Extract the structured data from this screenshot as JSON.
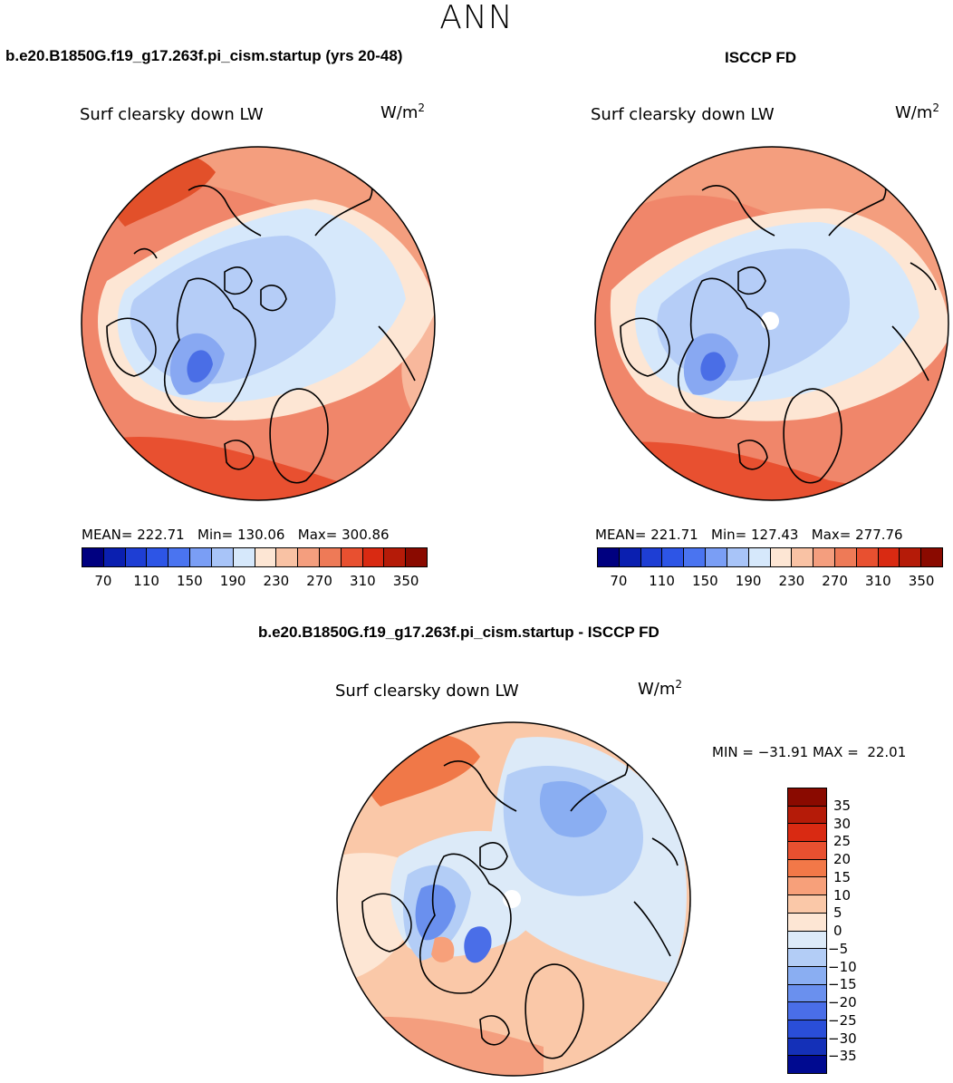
{
  "page": {
    "title": "ANN"
  },
  "panels": {
    "left": {
      "case_title": "b.e20.B1850G.f19_g17.263f.pi_cism.startup (yrs 20-48)",
      "variable": "Surf clearsky down LW",
      "units_base": "W/m",
      "units_exp": "2",
      "stats": "MEAN= 222.71   Min= 130.06   Max= 300.86",
      "colorbar": {
        "colors": [
          "#000080",
          "#0a1fb0",
          "#1e3ed4",
          "#2d55e6",
          "#4a74f0",
          "#7a9ef5",
          "#a8c4f8",
          "#d6e8fb",
          "#fde6d4",
          "#f9c2a4",
          "#f49e7e",
          "#ee7a57",
          "#e85030",
          "#d92a12",
          "#b51b08",
          "#8a0a00"
        ],
        "tick_labels": [
          "70",
          "110",
          "150",
          "190",
          "230",
          "270",
          "310",
          "350"
        ]
      }
    },
    "right": {
      "case_title": "ISCCP FD",
      "variable": "Surf clearsky down LW",
      "units_base": "W/m",
      "units_exp": "2",
      "stats": "MEAN= 221.71   Min= 127.43   Max= 277.76",
      "colorbar": {
        "colors": [
          "#000080",
          "#0a1fb0",
          "#1e3ed4",
          "#2d55e6",
          "#4a74f0",
          "#7a9ef5",
          "#a8c4f8",
          "#d6e8fb",
          "#fde6d4",
          "#f9c2a4",
          "#f49e7e",
          "#ee7a57",
          "#e85030",
          "#d92a12",
          "#b51b08",
          "#8a0a00"
        ],
        "tick_labels": [
          "70",
          "110",
          "150",
          "190",
          "230",
          "270",
          "310",
          "350"
        ]
      }
    },
    "diff": {
      "case_title": "b.e20.B1850G.f19_g17.263f.pi_cism.startup - ISCCP FD",
      "variable": "Surf clearsky down LW",
      "units_base": "W/m",
      "units_exp": "2",
      "stats": "MIN = −31.91 MAX =  22.01",
      "colorbar": {
        "colors": [
          "#8a0a00",
          "#b51b08",
          "#d92a12",
          "#e85030",
          "#f27848",
          "#f7a07a",
          "#fac8a8",
          "#fde6d4",
          "#dceaf8",
          "#b3cdf6",
          "#8aaef2",
          "#6a90ee",
          "#4a6ee8",
          "#2a4ed8",
          "#1430b8",
          "#000a90"
        ],
        "tick_labels": [
          "35",
          "30",
          "25",
          "20",
          "15",
          "10",
          "5",
          "0",
          "−5",
          "−10",
          "−15",
          "−20",
          "−25",
          "−30",
          "−35"
        ]
      }
    }
  },
  "palette": {
    "warm_dark": "#e2502a",
    "warm_mid": "#f0866a",
    "warm_light": "#f8b89c",
    "cream": "#fde6d4",
    "blue_pale": "#d6e8fb",
    "blue_light": "#b5cdf7",
    "blue_mid": "#88a8f2",
    "blue_deep": "#4a6ee6"
  }
}
